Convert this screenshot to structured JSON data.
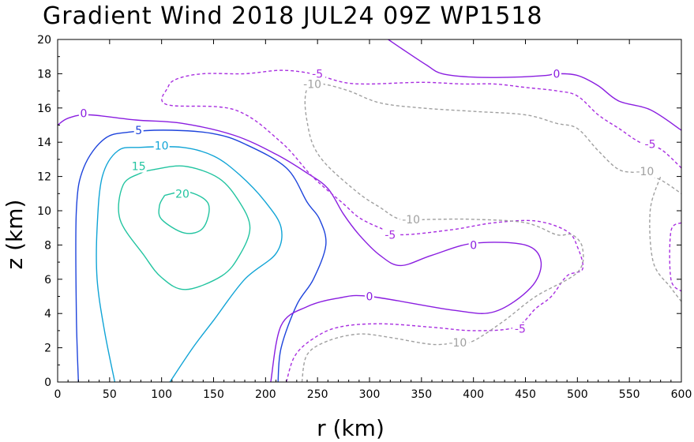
{
  "chart_data": {
    "type": "contour",
    "title": "Gradient Wind 2018 JUL24 09Z   WP1518",
    "xlabel": "r (km)",
    "ylabel": "z (km)",
    "xlim": [
      0,
      600
    ],
    "ylim": [
      0,
      20
    ],
    "x_ticks": [
      "0",
      "50",
      "100",
      "150",
      "200",
      "250",
      "300",
      "350",
      "400",
      "450",
      "500",
      "550",
      "600"
    ],
    "y_ticks": [
      "0",
      "2",
      "4",
      "6",
      "8",
      "10",
      "12",
      "14",
      "16",
      "18",
      "20"
    ],
    "contours": [
      {
        "level": 20,
        "label": "20",
        "color": "#22c4a0",
        "dashed": false,
        "lines": [
          [
            [
              103,
              10.9
            ],
            [
              125,
              11.1
            ],
            [
              145,
              10.4
            ],
            [
              140,
              9.0
            ],
            [
              122,
              8.7
            ],
            [
              100,
              9.5
            ],
            [
              98,
              10.3
            ],
            [
              103,
              10.9
            ]
          ]
        ],
        "labels": [
          {
            "x": 120,
            "y": 11.0
          }
        ]
      },
      {
        "level": 15,
        "label": "15",
        "color": "#22c4a0",
        "dashed": false,
        "lines": [
          [
            [
              92,
              12.4
            ],
            [
              122,
              12.6
            ],
            [
              155,
              11.9
            ],
            [
              175,
              10.5
            ],
            [
              185,
              9.0
            ],
            [
              175,
              7.4
            ],
            [
              158,
              6.2
            ],
            [
              123,
              5.4
            ],
            [
              100,
              6.1
            ],
            [
              83,
              7.4
            ],
            [
              60,
              9.5
            ],
            [
              63,
              11.5
            ],
            [
              80,
              12.2
            ],
            [
              92,
              12.4
            ]
          ]
        ],
        "labels": [
          {
            "x": 78,
            "y": 12.6
          }
        ]
      },
      {
        "level": 10,
        "label": "10",
        "color": "#10a4d6",
        "dashed": false,
        "lines": [
          [
            [
              55,
              0
            ],
            [
              45,
              3
            ],
            [
              38,
              6
            ],
            [
              38,
              9
            ],
            [
              43,
              12
            ],
            [
              58,
              13.5
            ],
            [
              80,
              13.7
            ],
            [
              120,
              13.7
            ],
            [
              150,
              13.2
            ],
            [
              175,
              12.1
            ],
            [
              200,
              10.5
            ],
            [
              215,
              9.0
            ],
            [
              210,
              7.5
            ],
            [
              180,
              6.0
            ],
            [
              150,
              3.6
            ],
            [
              130,
              2.0
            ],
            [
              108,
              0
            ]
          ]
        ],
        "labels": [
          {
            "x": 100,
            "y": 13.8
          }
        ]
      },
      {
        "level": 5,
        "label": "5",
        "color": "#1e44dc",
        "dashed": false,
        "lines": [
          [
            [
              20,
              0
            ],
            [
              18,
              4
            ],
            [
              18,
              10
            ],
            [
              25,
              12.5
            ],
            [
              45,
              14.2
            ],
            [
              70,
              14.6
            ],
            [
              110,
              14.7
            ],
            [
              150,
              14.5
            ],
            [
              180,
              13.9
            ],
            [
              220,
              12.5
            ],
            [
              240,
              10.5
            ],
            [
              252,
              9.5
            ],
            [
              258,
              8.0
            ],
            [
              246,
              6.0
            ],
            [
              230,
              4.5
            ],
            [
              215,
              2.0
            ],
            [
              212,
              0
            ]
          ]
        ],
        "labels": [
          {
            "x": 78,
            "y": 14.7
          }
        ]
      },
      {
        "level": 0,
        "label": "0",
        "color": "#8a1ee0",
        "dashed": false,
        "lines": [
          [
            [
              0,
              15.0
            ],
            [
              10,
              15.4
            ],
            [
              30,
              15.6
            ],
            [
              75,
              15.3
            ],
            [
              120,
              15.1
            ],
            [
              170,
              14.4
            ],
            [
              210,
              13.3
            ],
            [
              240,
              12.2
            ],
            [
              260,
              11.3
            ],
            [
              275,
              9.8
            ],
            [
              290,
              8.6
            ],
            [
              310,
              7.4
            ],
            [
              330,
              6.8
            ],
            [
              360,
              7.4
            ],
            [
              400,
              8.1
            ],
            [
              450,
              8.0
            ],
            [
              465,
              7.0
            ],
            [
              455,
              5.5
            ],
            [
              420,
              4.1
            ],
            [
              380,
              4.2
            ],
            [
              300,
              5.0
            ],
            [
              270,
              4.9
            ],
            [
              240,
              4.4
            ],
            [
              215,
              3.3
            ],
            [
              205,
              0
            ]
          ],
          [
            [
              318,
              20
            ],
            [
              335,
              19.3
            ],
            [
              355,
              18.5
            ],
            [
              370,
              18.0
            ],
            [
              400,
              17.8
            ],
            [
              440,
              17.8
            ],
            [
              470,
              17.9
            ],
            [
              480,
              18.0
            ],
            [
              500,
              17.9
            ],
            [
              520,
              17.3
            ],
            [
              540,
              16.4
            ],
            [
              570,
              15.9
            ],
            [
              600,
              14.7
            ]
          ]
        ],
        "labels": [
          {
            "x": 25,
            "y": 15.7
          },
          {
            "x": 480,
            "y": 18.0
          },
          {
            "x": 400,
            "y": 8.0
          },
          {
            "x": 300,
            "y": 5.0
          }
        ]
      },
      {
        "level": -5,
        "label": "-5",
        "color": "#a82ee0",
        "dashed": true,
        "lines": [
          [
            [
              220,
              0
            ],
            [
              228,
              1.5
            ],
            [
              245,
              2.5
            ],
            [
              270,
              3.2
            ],
            [
              310,
              3.4
            ],
            [
              360,
              3.2
            ],
            [
              400,
              3.0
            ],
            [
              440,
              3.2
            ],
            [
              460,
              4.3
            ],
            [
              475,
              5.0
            ],
            [
              490,
              6.2
            ],
            [
              505,
              6.6
            ],
            [
              500,
              7.9
            ],
            [
              490,
              8.8
            ],
            [
              460,
              9.4
            ],
            [
              420,
              9.3
            ],
            [
              380,
              8.9
            ],
            [
              330,
              8.6
            ],
            [
              310,
              9.0
            ],
            [
              290,
              9.6
            ],
            [
              275,
              10.4
            ],
            [
              245,
              12.0
            ],
            [
              215,
              14.0
            ],
            [
              170,
              15.9
            ],
            [
              105,
              16.2
            ],
            [
              106,
              17.2
            ],
            [
              115,
              17.7
            ],
            [
              140,
              18.0
            ],
            [
              180,
              18.0
            ],
            [
              215,
              18.2
            ],
            [
              245,
              18.0
            ],
            [
              275,
              17.5
            ],
            [
              300,
              17.4
            ],
            [
              350,
              17.5
            ],
            [
              390,
              17.4
            ],
            [
              420,
              17.4
            ],
            [
              450,
              17.2
            ],
            [
              480,
              17.0
            ],
            [
              500,
              16.7
            ],
            [
              520,
              15.6
            ],
            [
              540,
              14.8
            ],
            [
              560,
              14.0
            ],
            [
              580,
              13.6
            ],
            [
              600,
              12.5
            ]
          ],
          [
            [
              600,
              9.3
            ],
            [
              590,
              8.8
            ],
            [
              590,
              6.0
            ],
            [
              600,
              5.3
            ]
          ]
        ],
        "labels": [
          {
            "x": 250,
            "y": 18.0
          },
          {
            "x": 570,
            "y": 13.9
          },
          {
            "x": 320,
            "y": 8.6
          },
          {
            "x": 445,
            "y": 3.1
          }
        ]
      },
      {
        "level": -10,
        "label": "-10",
        "color": "#a0a0a0",
        "dashed": true,
        "lines": [
          [
            [
              235,
              0
            ],
            [
              240,
              1.6
            ],
            [
              260,
              2.4
            ],
            [
              290,
              2.8
            ],
            [
              320,
              2.6
            ],
            [
              360,
              2.2
            ],
            [
              385,
              2.3
            ],
            [
              400,
              2.4
            ],
            [
              430,
              3.6
            ],
            [
              460,
              5.0
            ],
            [
              500,
              6.4
            ],
            [
              505,
              7.8
            ],
            [
              495,
              8.6
            ],
            [
              480,
              8.6
            ],
            [
              450,
              9.3
            ],
            [
              400,
              9.5
            ],
            [
              360,
              9.5
            ],
            [
              330,
              9.5
            ],
            [
              310,
              10.2
            ],
            [
              290,
              11.0
            ],
            [
              260,
              12.6
            ],
            [
              246,
              13.8
            ],
            [
              240,
              15.2
            ],
            [
              238,
              16.5
            ],
            [
              242,
              17.3
            ],
            [
              255,
              17.4
            ],
            [
              280,
              17.0
            ],
            [
              310,
              16.3
            ],
            [
              350,
              16.0
            ],
            [
              400,
              15.8
            ],
            [
              450,
              15.6
            ],
            [
              480,
              15.1
            ],
            [
              500,
              14.8
            ],
            [
              520,
              13.5
            ],
            [
              540,
              12.4
            ],
            [
              560,
              12.2
            ],
            [
              580,
              11.8
            ],
            [
              600,
              11.0
            ]
          ],
          [
            [
              600,
              4.7
            ],
            [
              590,
              5.5
            ],
            [
              573,
              7.0
            ],
            [
              570,
              10.0
            ],
            [
              580,
              12.0
            ]
          ]
        ],
        "labels": [
          {
            "x": 245,
            "y": 17.4
          },
          {
            "x": 340,
            "y": 9.5
          },
          {
            "x": 565,
            "y": 12.3
          },
          {
            "x": 385,
            "y": 2.3
          }
        ]
      }
    ]
  }
}
